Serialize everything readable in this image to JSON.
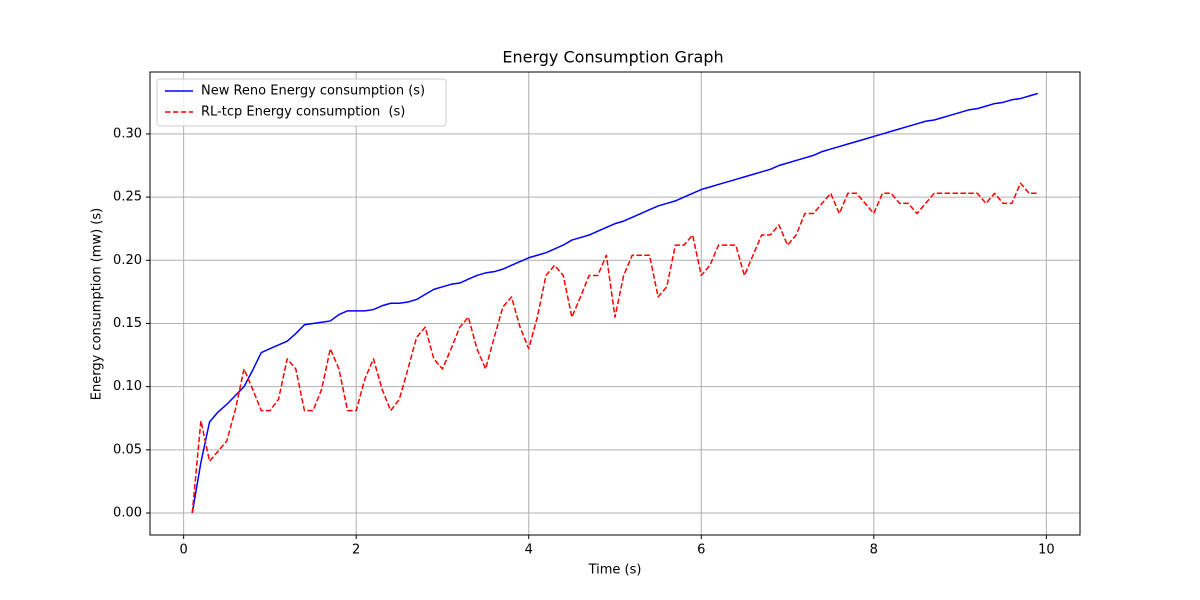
{
  "chart_data": {
    "type": "line",
    "title": "Energy Consumption Graph",
    "x_label": "Time (s)",
    "y_label": "Energy consumption (mw) (s)",
    "x": [
      0.1,
      0.2,
      0.3,
      0.4,
      0.5,
      0.6,
      0.7,
      0.8,
      0.9,
      1.0,
      1.1,
      1.2,
      1.3,
      1.4,
      1.5,
      1.6,
      1.7,
      1.8,
      1.9,
      2.0,
      2.1,
      2.2,
      2.3,
      2.4,
      2.5,
      2.6,
      2.7,
      2.8,
      2.9,
      3.0,
      3.1,
      3.2,
      3.3,
      3.4,
      3.5,
      3.6,
      3.7,
      3.8,
      3.9,
      4.0,
      4.1,
      4.2,
      4.3,
      4.4,
      4.5,
      4.6,
      4.7,
      4.8,
      4.9,
      5.0,
      5.1,
      5.2,
      5.3,
      5.4,
      5.5,
      5.6,
      5.7,
      5.8,
      5.9,
      6.0,
      6.1,
      6.2,
      6.3,
      6.4,
      6.5,
      6.6,
      6.7,
      6.8,
      6.9,
      7.0,
      7.1,
      7.2,
      7.3,
      7.4,
      7.5,
      7.6,
      7.7,
      7.8,
      7.9,
      8.0,
      8.1,
      8.2,
      8.3,
      8.4,
      8.5,
      8.6,
      8.7,
      8.8,
      8.9,
      9.0,
      9.1,
      9.2,
      9.3,
      9.4,
      9.5,
      9.6,
      9.7,
      9.8,
      9.9
    ],
    "series": [
      {
        "name": "New Reno Energy consumption (s)",
        "color": "#0000ff",
        "dash": false,
        "values": [
          0.0,
          0.04,
          0.072,
          0.08,
          0.086,
          0.093,
          0.1,
          0.113,
          0.127,
          0.13,
          0.133,
          0.136,
          0.142,
          0.149,
          0.15,
          0.151,
          0.152,
          0.157,
          0.16,
          0.16,
          0.16,
          0.161,
          0.164,
          0.166,
          0.166,
          0.167,
          0.169,
          0.173,
          0.177,
          0.179,
          0.181,
          0.182,
          0.185,
          0.188,
          0.19,
          0.191,
          0.193,
          0.196,
          0.199,
          0.202,
          0.204,
          0.206,
          0.209,
          0.212,
          0.216,
          0.218,
          0.22,
          0.223,
          0.226,
          0.229,
          0.231,
          0.234,
          0.237,
          0.24,
          0.243,
          0.245,
          0.247,
          0.25,
          0.253,
          0.256,
          0.258,
          0.26,
          0.262,
          0.264,
          0.266,
          0.268,
          0.27,
          0.272,
          0.275,
          0.277,
          0.279,
          0.281,
          0.283,
          0.286,
          0.288,
          0.29,
          0.292,
          0.294,
          0.296,
          0.298,
          0.3,
          0.302,
          0.304,
          0.306,
          0.308,
          0.31,
          0.311,
          0.313,
          0.315,
          0.317,
          0.319,
          0.32,
          0.322,
          0.324,
          0.325,
          0.327,
          0.328,
          0.33,
          0.332
        ]
      },
      {
        "name": "RL-tcp Energy consumption  (s)",
        "color": "#ff0000",
        "dash": true,
        "values": [
          0.0,
          0.073,
          0.041,
          0.049,
          0.057,
          0.082,
          0.114,
          0.098,
          0.081,
          0.081,
          0.09,
          0.122,
          0.114,
          0.081,
          0.081,
          0.098,
          0.13,
          0.114,
          0.081,
          0.081,
          0.106,
          0.122,
          0.098,
          0.081,
          0.09,
          0.114,
          0.139,
          0.147,
          0.122,
          0.114,
          0.13,
          0.147,
          0.155,
          0.13,
          0.114,
          0.139,
          0.163,
          0.171,
          0.147,
          0.13,
          0.155,
          0.188,
          0.196,
          0.188,
          0.155,
          0.171,
          0.188,
          0.188,
          0.204,
          0.155,
          0.188,
          0.204,
          0.204,
          0.204,
          0.171,
          0.179,
          0.212,
          0.212,
          0.22,
          0.188,
          0.196,
          0.212,
          0.212,
          0.212,
          0.188,
          0.204,
          0.22,
          0.22,
          0.228,
          0.212,
          0.22,
          0.237,
          0.237,
          0.245,
          0.253,
          0.237,
          0.253,
          0.253,
          0.245,
          0.237,
          0.253,
          0.253,
          0.245,
          0.245,
          0.237,
          0.245,
          0.253,
          0.253,
          0.253,
          0.253,
          0.253,
          0.253,
          0.245,
          0.253,
          0.245,
          0.245,
          0.261,
          0.253,
          0.253
        ]
      }
    ],
    "xlim": [
      -0.39,
      10.39
    ],
    "ylim": [
      -0.0174,
      0.349
    ],
    "xticks": [
      0,
      2,
      4,
      6,
      8,
      10
    ],
    "yticks": [
      {
        "value": 0,
        "label": "0.00"
      },
      {
        "value": 0.05,
        "label": "0.05"
      },
      {
        "value": 0.1,
        "label": "0.10"
      },
      {
        "value": 0.15,
        "label": "0.15"
      },
      {
        "value": 0.2,
        "label": "0.20"
      },
      {
        "value": 0.25,
        "label": "0.25"
      },
      {
        "value": 0.3,
        "label": "0.30"
      }
    ],
    "grid": true,
    "legend": "upper-left"
  }
}
